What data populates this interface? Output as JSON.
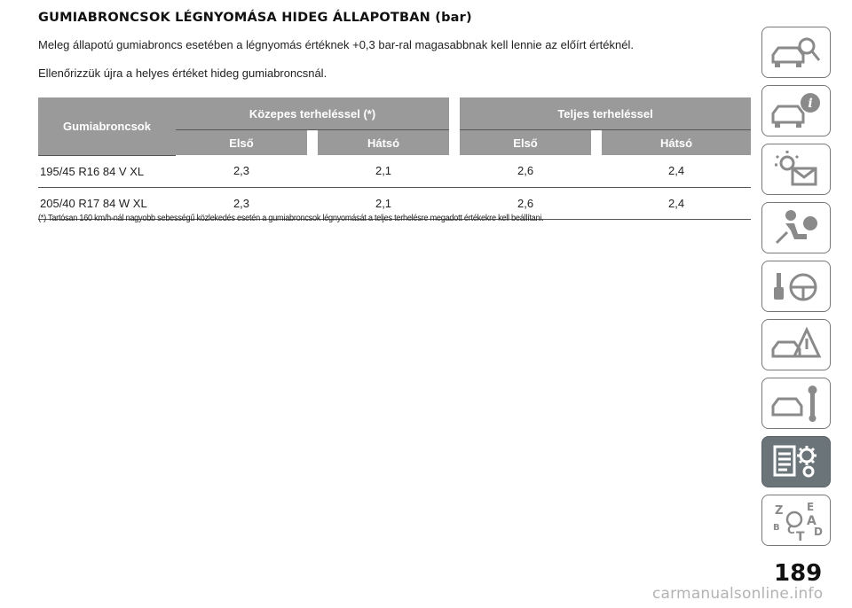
{
  "title": "GUMIABRONCSOK LÉGNYOMÁSA HIDEG ÁLLAPOTBAN (bar)",
  "paragraphs": [
    "Meleg állapotú gumiabroncs esetében a légnyomás értéknek +0,3 bar-ral magasabbnak kell lennie az előírt értéknél.",
    "Ellenőrizzük újra a helyes értéket hideg gumiabroncsnál."
  ],
  "table": {
    "tyre_header": "Gumiabroncsok",
    "groups": [
      "Közepes terheléssel (*)",
      "Teljes terheléssel"
    ],
    "subheaders": [
      "Első",
      "Hátsó",
      "Első",
      "Hátsó"
    ],
    "rows": [
      {
        "tyre": "195/45 R16 84 V XL",
        "values": [
          "2,3",
          "2,1",
          "2,6",
          "2,4"
        ]
      },
      {
        "tyre": "205/40 R17 84 W XL",
        "values": [
          "2,3",
          "2,1",
          "2,6",
          "2,4"
        ]
      }
    ]
  },
  "footnote": "(*) Tartósan 160 km/h-nál nagyobb sebességű közlekedés esetén a gumiabroncsok légnyomását a teljes terhelésre megadott értékekre kell beállítani.",
  "sidebar_tabs": [
    {
      "icon": "car-search-icon",
      "active": false
    },
    {
      "icon": "car-info-icon",
      "active": false
    },
    {
      "icon": "warning-light-message-icon",
      "active": false
    },
    {
      "icon": "airbag-passenger-icon",
      "active": false
    },
    {
      "icon": "key-steering-wheel-icon",
      "active": false
    },
    {
      "icon": "road-hazard-icon",
      "active": false
    },
    {
      "icon": "car-wrench-icon",
      "active": false
    },
    {
      "icon": "specifications-gear-icon",
      "active": true
    },
    {
      "icon": "alphabetical-index-icon",
      "active": false
    }
  ],
  "sidebar_index_letters": [
    "Z",
    "E",
    "A",
    "B",
    "C",
    "T",
    "D"
  ],
  "page_number": "189",
  "watermark": "carmanualsonline.info",
  "colors": {
    "header_bg": "#9a9a9a",
    "active_tab": "#6b7478",
    "icon_stroke": "#8a8a8a"
  }
}
